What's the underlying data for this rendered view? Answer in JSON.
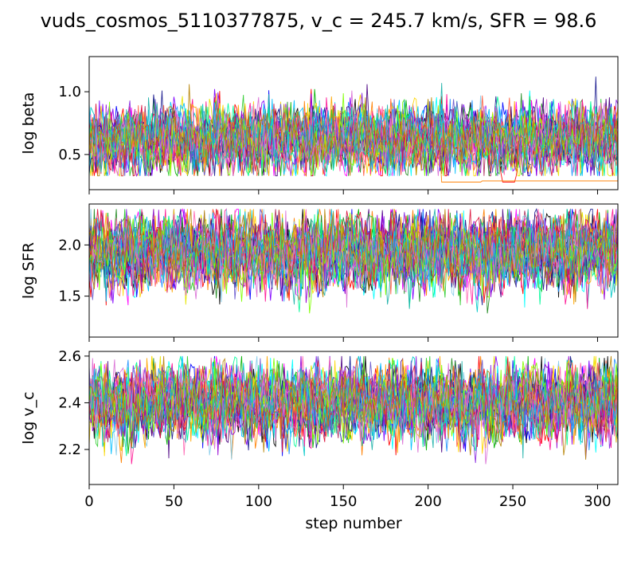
{
  "title": "vuds_cosmos_5110377875, v_c = 245.7 km/s, SFR = 98.6",
  "walker_colors": [
    "#000000",
    "#ff0000",
    "#0000ff",
    "#00b000",
    "#ff00ff",
    "#00c8c8",
    "#e6e600",
    "#ff8000",
    "#8000ff",
    "#1e90ff",
    "#b03060",
    "#228b22",
    "#00ffff",
    "#ff1493",
    "#4b0082",
    "#87ceeb",
    "#ffa500",
    "#32cd32",
    "#9400d3",
    "#ffd700",
    "#1e1e90",
    "#ff6347",
    "#00fa9a",
    "#8a2be2",
    "#ff69b4",
    "#6a5acd",
    "#00bfff",
    "#dc143c",
    "#7fff00",
    "#da70d6",
    "#20b2aa",
    "#b8860b"
  ],
  "chart_data": {
    "type": "line",
    "description_type": "MCMC walker trace plot (3 stacked panels, shared x axis)",
    "x_axis": {
      "label": "step number",
      "range": [
        0,
        312
      ],
      "ticks": [
        0,
        50,
        100,
        150,
        200,
        250,
        300
      ]
    },
    "n_walkers": 32,
    "n_steps": 312,
    "panels": [
      {
        "ylabel": "log beta",
        "ylim": [
          0.22,
          1.28
        ],
        "yticks": [
          0.5,
          1.0
        ],
        "ytick_labels": [
          "0.5",
          "1.0"
        ],
        "band": {
          "mean": 0.62,
          "low": 0.33,
          "high": 1.12
        },
        "outliers": [
          {
            "walker": 7,
            "segments": [
              {
                "from": 208,
                "to": 232,
                "value": 0.28
              },
              {
                "from": 232,
                "to": 312,
                "value": 0.29
              }
            ]
          },
          {
            "walker": 1,
            "segments": [
              {
                "from": 244,
                "to": 251,
                "value": 0.28
              }
            ]
          }
        ]
      },
      {
        "ylabel": "log SFR",
        "ylim": [
          1.1,
          2.4
        ],
        "yticks": [
          1.5,
          2.0
        ],
        "ytick_labels": [
          "1.5",
          "2.0"
        ],
        "band": {
          "mean": 1.93,
          "low": 1.28,
          "high": 2.35
        },
        "outliers": []
      },
      {
        "ylabel": "log v_c",
        "ylim": [
          2.05,
          2.62
        ],
        "yticks": [
          2.2,
          2.4,
          2.6
        ],
        "ytick_labels": [
          "2.2",
          "2.4",
          "2.6"
        ],
        "band": {
          "mean": 2.4,
          "low": 2.13,
          "high": 2.6
        },
        "outliers": []
      }
    ]
  }
}
